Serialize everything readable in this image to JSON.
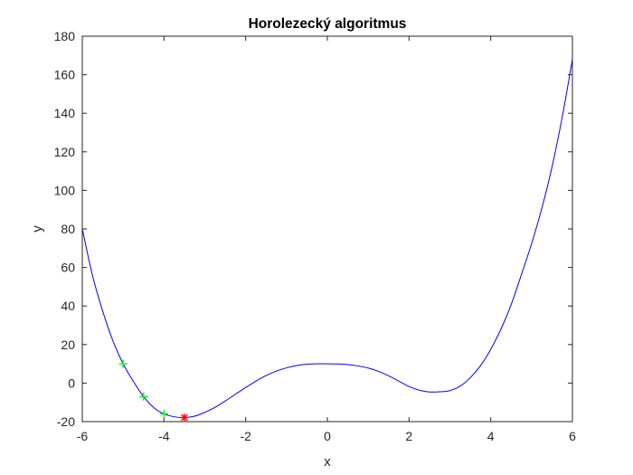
{
  "chart_data": {
    "type": "line",
    "title": "Horolezecký algoritmus",
    "xlabel": "x",
    "ylabel": "y",
    "xlim": [
      -6,
      6
    ],
    "ylim": [
      -20,
      180
    ],
    "xticks": [
      -6,
      -4,
      -2,
      0,
      2,
      4,
      6
    ],
    "yticks": [
      -20,
      0,
      20,
      40,
      60,
      80,
      100,
      120,
      140,
      160,
      180
    ],
    "grid": false,
    "legend": null,
    "series": [
      {
        "kind": "curve",
        "color": "#0000ff",
        "x": [
          -6.0,
          -5.75,
          -5.5,
          -5.25,
          -5.0,
          -4.75,
          -4.5,
          -4.25,
          -4.0,
          -3.75,
          -3.5,
          -3.25,
          -3.0,
          -2.75,
          -2.5,
          -2.25,
          -2.0,
          -1.75,
          -1.5,
          -1.25,
          -1.0,
          -0.75,
          -0.5,
          -0.25,
          0.0,
          0.25,
          0.5,
          0.75,
          1.0,
          1.25,
          1.5,
          1.75,
          2.0,
          2.25,
          2.5,
          2.75,
          3.0,
          3.25,
          3.5,
          3.75,
          4.0,
          4.25,
          4.5,
          4.75,
          5.0,
          5.25,
          5.5,
          5.75,
          6.0
        ],
        "y": [
          80.0,
          55.8,
          37.3,
          21.9,
          10.0,
          0.9,
          -7.0,
          -12.7,
          -16.0,
          -17.5,
          -17.9,
          -17.2,
          -15.2,
          -12.6,
          -9.3,
          -5.8,
          -2.3,
          1.0,
          3.9,
          6.2,
          7.9,
          9.1,
          9.8,
          10.0,
          10.0,
          9.9,
          9.6,
          8.9,
          7.8,
          6.1,
          3.8,
          1.0,
          -1.8,
          -3.7,
          -4.6,
          -4.5,
          -3.9,
          -1.6,
          2.8,
          9.0,
          17.5,
          28.0,
          40.7,
          56.2,
          72.3,
          90.6,
          112.1,
          138.0,
          168.0
        ]
      },
      {
        "kind": "markers",
        "marker": "+",
        "color": "#00ff00",
        "x": [
          -5.0,
          -4.5,
          -4.0
        ],
        "y": [
          10.0,
          -7.0,
          -16.0
        ]
      },
      {
        "kind": "markers",
        "marker": "*",
        "color": "#ff0000",
        "x": [
          -3.5
        ],
        "y": [
          -17.9
        ]
      }
    ]
  }
}
